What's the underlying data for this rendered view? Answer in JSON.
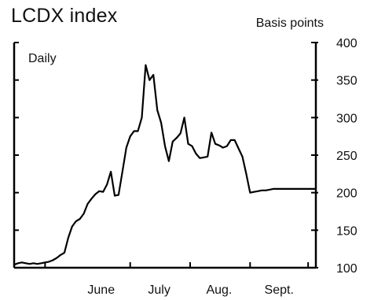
{
  "chart_data": {
    "type": "line",
    "title": "LCDX index",
    "ylabel": "Basis points",
    "annotation": "Daily",
    "ylim": [
      100,
      400
    ],
    "yticks": [
      100,
      150,
      200,
      250,
      300,
      350,
      400
    ],
    "xtick_labels": [
      "June",
      "July",
      "Aug.",
      "Sept."
    ],
    "xtick_positions": [
      45,
      75,
      106,
      137
    ],
    "xlim": [
      0,
      156
    ],
    "series": [
      {
        "x": [
          0,
          2,
          4,
          6,
          8,
          10,
          12,
          14,
          16,
          18,
          20,
          22,
          24,
          26,
          28,
          30,
          32,
          34,
          36,
          38,
          40,
          42,
          44,
          46,
          48,
          50,
          52,
          54,
          56,
          58,
          60,
          62,
          64,
          66,
          68,
          70,
          72,
          74,
          76,
          78,
          80,
          82,
          84,
          86,
          88,
          90,
          92,
          94,
          96,
          98,
          100,
          102,
          104,
          106,
          108,
          110,
          112,
          114,
          116,
          118,
          120,
          122,
          124,
          126,
          128,
          130,
          132,
          134,
          136,
          138,
          140,
          142,
          144,
          146,
          148,
          150,
          152,
          154,
          156
        ],
        "values": [
          104,
          106,
          107,
          106,
          105,
          106,
          105,
          106,
          107,
          108,
          110,
          113,
          117,
          120,
          140,
          155,
          162,
          165,
          172,
          185,
          192,
          198,
          202,
          201,
          211,
          228,
          196,
          197,
          228,
          260,
          275,
          282,
          282,
          300,
          370,
          350,
          357,
          310,
          293,
          262,
          242,
          268,
          273,
          279,
          300,
          265,
          262,
          252,
          246,
          247,
          248,
          280,
          265,
          263,
          260,
          262,
          270,
          270,
          259,
          248,
          225,
          200,
          201,
          202,
          203,
          203,
          204,
          205,
          205,
          205,
          205,
          205,
          205,
          205,
          205,
          205,
          205,
          205,
          205
        ]
      }
    ]
  }
}
